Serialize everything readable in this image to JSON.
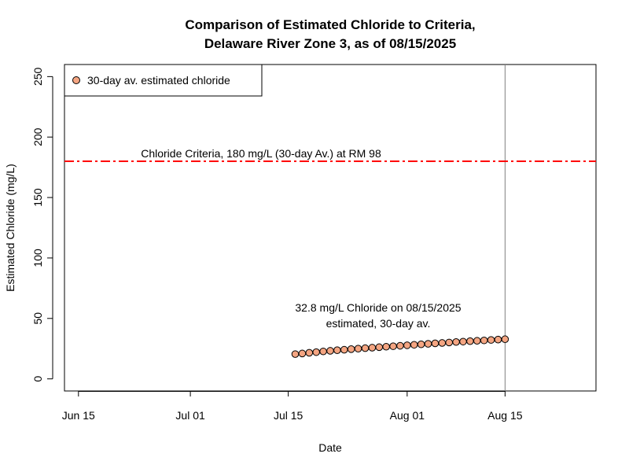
{
  "chart_data": {
    "type": "scatter",
    "title_line1": "Comparison of Estimated Chloride to Criteria,",
    "title_line2": "Delaware River Zone 3, as of 08/15/2025",
    "xlabel": "Date",
    "ylabel": "Estimated Chloride (mg/L)",
    "xlim": [
      "2025-06-13",
      "2025-08-28"
    ],
    "ylim": [
      -10,
      260
    ],
    "x_ticks": [
      {
        "date": "2025-06-15",
        "label": "Jun 15"
      },
      {
        "date": "2025-07-01",
        "label": "Jul 01"
      },
      {
        "date": "2025-07-15",
        "label": "Jul 15"
      },
      {
        "date": "2025-08-01",
        "label": "Aug 01"
      },
      {
        "date": "2025-08-15",
        "label": "Aug 15"
      }
    ],
    "y_ticks": [
      0,
      50,
      100,
      150,
      200,
      250
    ],
    "legend": {
      "position": "top-left",
      "entries": [
        {
          "label": "30-day av. estimated chloride",
          "marker": "circle",
          "color": "#f4a582"
        }
      ]
    },
    "criteria_line": {
      "value": 180,
      "label": "Chloride Criteria, 180 mg/L (30-day Av.) at RM 98",
      "color": "#ff0000",
      "style": "dashdot"
    },
    "current_date_line": {
      "date": "2025-08-15",
      "color": "#808080"
    },
    "annotation": {
      "line1": "32.8 mg/L Chloride on 08/15/2025",
      "line2": "estimated, 30-day av."
    },
    "series": [
      {
        "marker_fill": "#f4a582",
        "marker_edge": "#000000",
        "x": [
          "2025-07-16",
          "2025-07-17",
          "2025-07-18",
          "2025-07-19",
          "2025-07-20",
          "2025-07-21",
          "2025-07-22",
          "2025-07-23",
          "2025-07-24",
          "2025-07-25",
          "2025-07-26",
          "2025-07-27",
          "2025-07-28",
          "2025-07-29",
          "2025-07-30",
          "2025-07-31",
          "2025-08-01",
          "2025-08-02",
          "2025-08-03",
          "2025-08-04",
          "2025-08-05",
          "2025-08-06",
          "2025-08-07",
          "2025-08-08",
          "2025-08-09",
          "2025-08-10",
          "2025-08-11",
          "2025-08-12",
          "2025-08-13",
          "2025-08-14",
          "2025-08-15"
        ],
        "values": [
          20.5,
          21.0,
          21.6,
          22.1,
          22.7,
          23.2,
          23.7,
          24.1,
          24.6,
          25.0,
          25.4,
          25.8,
          26.2,
          26.6,
          27.0,
          27.4,
          27.8,
          28.2,
          28.6,
          29.0,
          29.4,
          29.7,
          30.1,
          30.5,
          30.8,
          31.2,
          31.5,
          31.8,
          32.2,
          32.5,
          32.8
        ]
      }
    ]
  }
}
